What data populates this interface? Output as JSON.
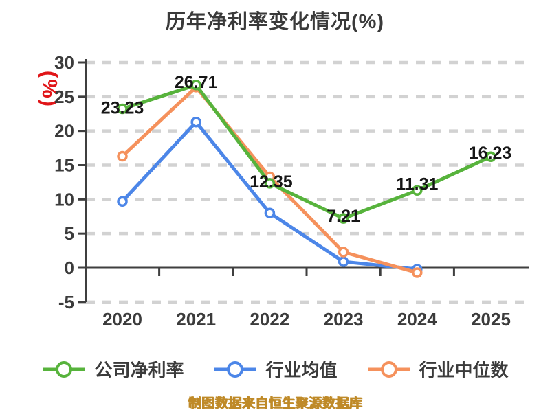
{
  "title": "历年净利率变化情况(%)",
  "y_axis_unit": "(%)",
  "watermark": "制图数据来自恒生聚源数据库",
  "colors": {
    "company": "#57B33C",
    "industry_avg": "#4C86E8",
    "industry_median": "#F5915C",
    "grid": "#D2D2D2",
    "axis": "#3F3F3F",
    "tick_text": "#3B3B3B",
    "data_label": "#161616",
    "title_text": "#3A3A3A",
    "unit_red": "#E01518",
    "watermark_gold": "#BF8A28"
  },
  "chart_data": {
    "type": "line",
    "title": "历年净利率变化情况(%)",
    "categories": [
      "2020",
      "2021",
      "2022",
      "2023",
      "2024",
      "2025"
    ],
    "series": [
      {
        "name": "公司净利率",
        "color_key": "company",
        "values": [
          23.23,
          26.71,
          12.35,
          7.21,
          11.31,
          16.23
        ],
        "labels": [
          "23.23",
          "26.71",
          "12.35",
          "7.21",
          "11.31",
          "16.23"
        ]
      },
      {
        "name": "行业均值",
        "color_key": "industry_avg",
        "values": [
          9.7,
          21.3,
          8.0,
          0.9,
          -0.2
        ]
      },
      {
        "name": "行业中位数",
        "color_key": "industry_median",
        "values": [
          16.3,
          26.4,
          13.3,
          2.3,
          -0.7
        ]
      }
    ],
    "yticks": [
      30,
      25,
      20,
      15,
      10,
      5,
      0,
      -5
    ],
    "ylim": [
      -5,
      30
    ],
    "grid": "dashed-horizontal",
    "legend_position": "bottom",
    "xlabel": "",
    "ylabel": "(%)"
  }
}
